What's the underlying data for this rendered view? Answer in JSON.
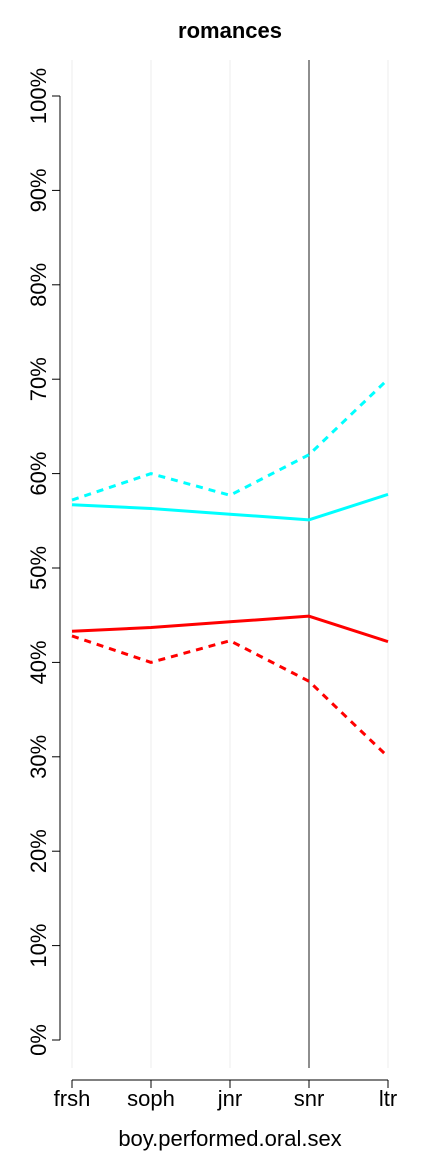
{
  "chart_data": {
    "type": "line",
    "title": "romances",
    "xlabel": "boy.performed.oral.sex",
    "ylabel": "",
    "categories": [
      "frsh",
      "soph",
      "jnr",
      "snr",
      "ltr"
    ],
    "ylim": [
      0,
      100
    ],
    "yticks": [
      "0%",
      "10%",
      "20%",
      "30%",
      "40%",
      "50%",
      "60%",
      "70%",
      "80%",
      "90%",
      "100%"
    ],
    "highlight_category": "snr",
    "grid": "vertical",
    "series": [
      {
        "color": "#00FFFF",
        "style": "solid",
        "values": [
          56.7,
          56.3,
          55.7,
          55.1,
          57.8
        ]
      },
      {
        "color": "#00FFFF",
        "style": "dashed",
        "values": [
          57.2,
          60.0,
          57.7,
          62.0,
          70.0
        ]
      },
      {
        "color": "#FF0000",
        "style": "solid",
        "values": [
          43.3,
          43.7,
          44.3,
          44.9,
          42.2
        ]
      },
      {
        "color": "#FF0000",
        "style": "dashed",
        "values": [
          42.8,
          40.0,
          42.3,
          38.0,
          30.0
        ]
      }
    ]
  }
}
